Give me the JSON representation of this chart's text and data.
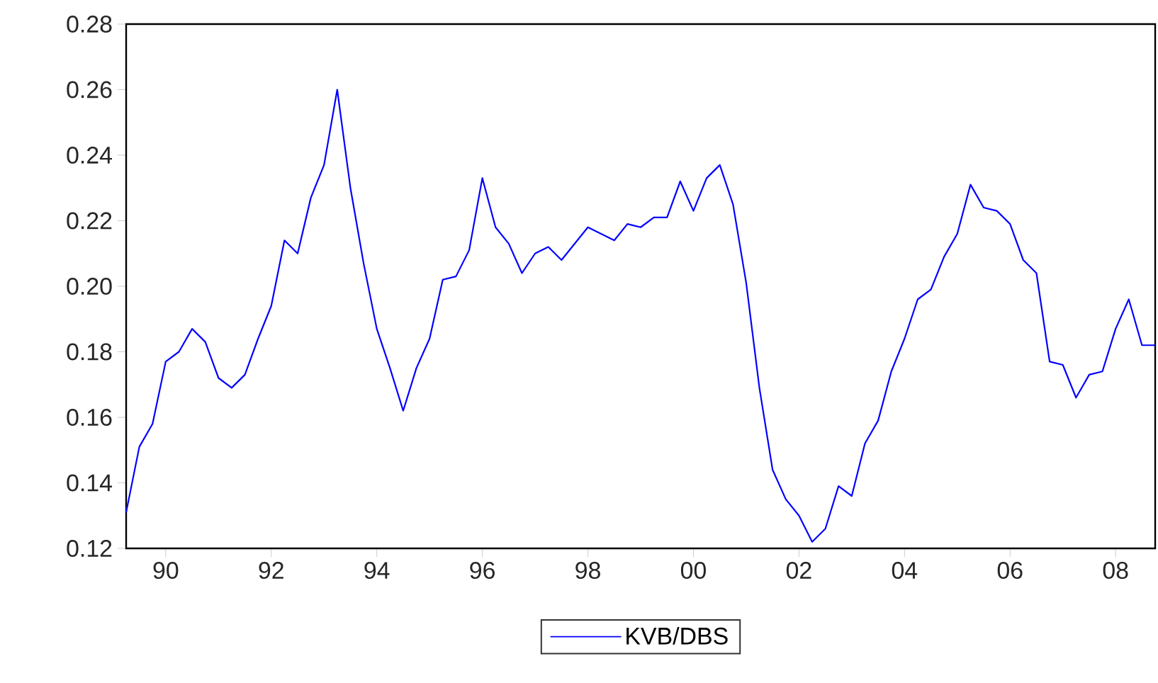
{
  "chart_data": {
    "type": "line",
    "x": [
      1989.25,
      1989.5,
      1989.75,
      1990,
      1990.25,
      1990.5,
      1990.75,
      1991,
      1991.25,
      1991.5,
      1991.75,
      1992,
      1992.25,
      1992.5,
      1992.75,
      1993,
      1993.25,
      1993.5,
      1993.75,
      1994,
      1994.25,
      1994.5,
      1994.75,
      1995,
      1995.25,
      1995.5,
      1995.75,
      1996,
      1996.25,
      1996.5,
      1996.75,
      1997,
      1997.25,
      1997.5,
      1997.75,
      1998,
      1998.25,
      1998.5,
      1998.75,
      1999,
      1999.25,
      1999.5,
      1999.75,
      2000,
      2000.25,
      2000.5,
      2000.75,
      2001,
      2001.25,
      2001.5,
      2001.75,
      2002,
      2002.25,
      2002.5,
      2002.75,
      2003,
      2003.25,
      2003.5,
      2003.75,
      2004,
      2004.25,
      2004.5,
      2004.75,
      2005,
      2005.25,
      2005.5,
      2005.75,
      2006,
      2006.25,
      2006.5,
      2006.75,
      2007,
      2007.25,
      2007.5,
      2007.75,
      2008,
      2008.25,
      2008.5,
      2008.75
    ],
    "series": [
      {
        "name": "KVB/DBS",
        "color": "#0000ff",
        "values": [
          0.131,
          0.151,
          0.158,
          0.177,
          0.18,
          0.187,
          0.183,
          0.172,
          0.169,
          0.173,
          0.184,
          0.194,
          0.214,
          0.21,
          0.227,
          0.237,
          0.26,
          0.23,
          0.207,
          0.187,
          0.175,
          0.162,
          0.175,
          0.184,
          0.202,
          0.203,
          0.211,
          0.233,
          0.218,
          0.213,
          0.204,
          0.21,
          0.212,
          0.208,
          0.213,
          0.218,
          0.216,
          0.214,
          0.219,
          0.218,
          0.221,
          0.221,
          0.232,
          0.223,
          0.233,
          0.237,
          0.225,
          0.201,
          0.169,
          0.144,
          0.135,
          0.13,
          0.122,
          0.126,
          0.139,
          0.136,
          0.152,
          0.159,
          0.174,
          0.184,
          0.196,
          0.199,
          0.209,
          0.216,
          0.231,
          0.224,
          0.223,
          0.219,
          0.208,
          0.204,
          0.177,
          0.176,
          0.166,
          0.173,
          0.174,
          0.187,
          0.196,
          0.182,
          0.182
        ]
      }
    ],
    "xlim": [
      1989.25,
      2008.75
    ],
    "ylim": [
      0.12,
      0.28
    ],
    "xticks": [
      {
        "value": 1990,
        "label": "90"
      },
      {
        "value": 1992,
        "label": "92"
      },
      {
        "value": 1994,
        "label": "94"
      },
      {
        "value": 1996,
        "label": "96"
      },
      {
        "value": 1998,
        "label": "98"
      },
      {
        "value": 2000,
        "label": "00"
      },
      {
        "value": 2002,
        "label": "02"
      },
      {
        "value": 2004,
        "label": "04"
      },
      {
        "value": 2006,
        "label": "06"
      },
      {
        "value": 2008,
        "label": "08"
      }
    ],
    "yticks": [
      {
        "value": 0.12,
        "label": "0.12"
      },
      {
        "value": 0.14,
        "label": "0.14"
      },
      {
        "value": 0.16,
        "label": "0.16"
      },
      {
        "value": 0.18,
        "label": "0.18"
      },
      {
        "value": 0.2,
        "label": "0.20"
      },
      {
        "value": 0.22,
        "label": "0.22"
      },
      {
        "value": 0.24,
        "label": "0.24"
      },
      {
        "value": 0.26,
        "label": "0.26"
      },
      {
        "value": 0.28,
        "label": "0.28"
      }
    ],
    "legend": "bottom",
    "grid": false,
    "marker": "none",
    "line_style": "solid"
  }
}
